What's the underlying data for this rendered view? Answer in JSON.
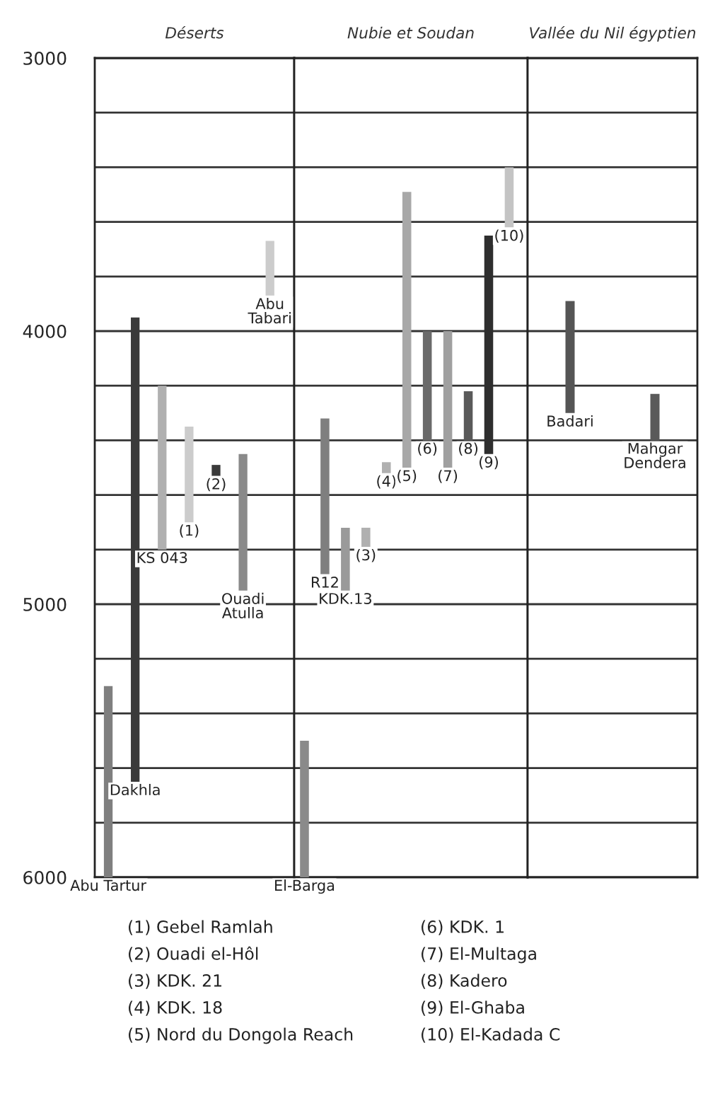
{
  "chart_data": [
    {
      "type": "bar",
      "title": "Déserts",
      "categories": [
        "Abu Tartur",
        "Dakhla",
        "KS 043",
        "(1)",
        "(2)",
        "Ouadi\nAtulla",
        "Abu\nTabari"
      ],
      "base": [
        5300,
        3950,
        4200,
        4350,
        4490,
        4450,
        3670
      ],
      "values": [
        700,
        1700,
        600,
        350,
        40,
        500,
        200
      ],
      "colors": [
        "#7f7f7f",
        "#3a3a3a",
        "#b0b0b0",
        "#cccccc",
        "#3a3a3a",
        "#8a8a8a",
        "#cccccc"
      ],
      "ylim": [
        6000,
        3000
      ],
      "yticks": [
        3000,
        {
          "value": 3200,
          "label": null
        },
        {
          "value": 3400,
          "label": null
        },
        {
          "value": 3600,
          "label": null
        },
        {
          "value": 3800,
          "label": null
        },
        4000,
        {
          "value": 4200,
          "label": null
        },
        {
          "value": 4400,
          "label": null
        },
        {
          "value": 4600,
          "label": null
        },
        {
          "value": 4800,
          "label": null
        },
        5000,
        {
          "value": 5200,
          "label": null
        },
        {
          "value": 5400,
          "label": null
        },
        {
          "value": 5600,
          "label": null
        },
        {
          "value": 5800,
          "label": null
        },
        6000
      ],
      "grid": "y",
      "tick_labels": "y",
      "annotations": [
        "(1) Gebel Ramlah",
        "(2) Ouadi el-Hôl",
        "(3) KDK. 21",
        "(4) KDK. 18",
        "(5) Nord du Dongola Reach",
        "(6) KDK. 1",
        "(7) El-Multaga",
        "(8) Kadero",
        "(9) El-Ghaba",
        "(10) El-Kadada C"
      ]
    },
    {
      "type": "bar",
      "title": "Nubie et Soudan",
      "categories": [
        "El-Barga",
        "R12",
        "KDK.13",
        "(3)",
        "(4)",
        "(5)",
        "(6)",
        "(7)",
        "(8)",
        "(9)",
        "(10)"
      ],
      "base": [
        5500,
        4320,
        4720,
        4720,
        4480,
        3490,
        4000,
        4000,
        4220,
        3650,
        3400
      ],
      "values": [
        500,
        570,
        230,
        70,
        40,
        1010,
        400,
        500,
        180,
        800,
        220
      ],
      "colors": [
        "#8a8a8a",
        "#7f7f7f",
        "#9a9a9a",
        "#b0b0b0",
        "#b0b0b0",
        "#a8a8a8",
        "#6a6a6a",
        "#a0a0a0",
        "#5a5a5a",
        "#2e2e2e",
        "#c4c4c4"
      ],
      "ylim": [
        6000,
        3000
      ],
      "yticks": [
        3000,
        {
          "value": 3200,
          "label": null
        },
        {
          "value": 3400,
          "label": null
        },
        {
          "value": 3600,
          "label": null
        },
        {
          "value": 3800,
          "label": null
        },
        4000,
        {
          "value": 4200,
          "label": null
        },
        {
          "value": 4400,
          "label": null
        },
        {
          "value": 4600,
          "label": null
        },
        {
          "value": 4800,
          "label": null
        },
        5000,
        {
          "value": 5200,
          "label": null
        },
        {
          "value": 5400,
          "label": null
        },
        {
          "value": 5600,
          "label": null
        },
        {
          "value": 5800,
          "label": null
        },
        6000
      ],
      "grid": "y",
      "tick_labels": false
    },
    {
      "type": "bar",
      "title": "Vallée du Nil égyptien",
      "categories": [
        "Badari",
        "Mahgar\nDendera"
      ],
      "base": [
        3890,
        4230
      ],
      "values": [
        410,
        170
      ],
      "colors": [
        "#555555",
        "#5a5a5a"
      ],
      "ylim": [
        6000,
        3000
      ],
      "yticks": [
        3000,
        {
          "value": 3200,
          "label": null
        },
        {
          "value": 3400,
          "label": null
        },
        {
          "value": 3600,
          "label": null
        },
        {
          "value": 3800,
          "label": null
        },
        4000,
        {
          "value": 4200,
          "label": null
        },
        {
          "value": 4400,
          "label": null
        },
        {
          "value": 4600,
          "label": null
        },
        {
          "value": 4800,
          "label": null
        },
        5000,
        {
          "value": 5200,
          "label": null
        },
        {
          "value": 5400,
          "label": null
        },
        {
          "value": 5600,
          "label": null
        },
        {
          "value": 5800,
          "label": null
        },
        6000
      ],
      "grid": "y",
      "tick_labels": false
    }
  ]
}
